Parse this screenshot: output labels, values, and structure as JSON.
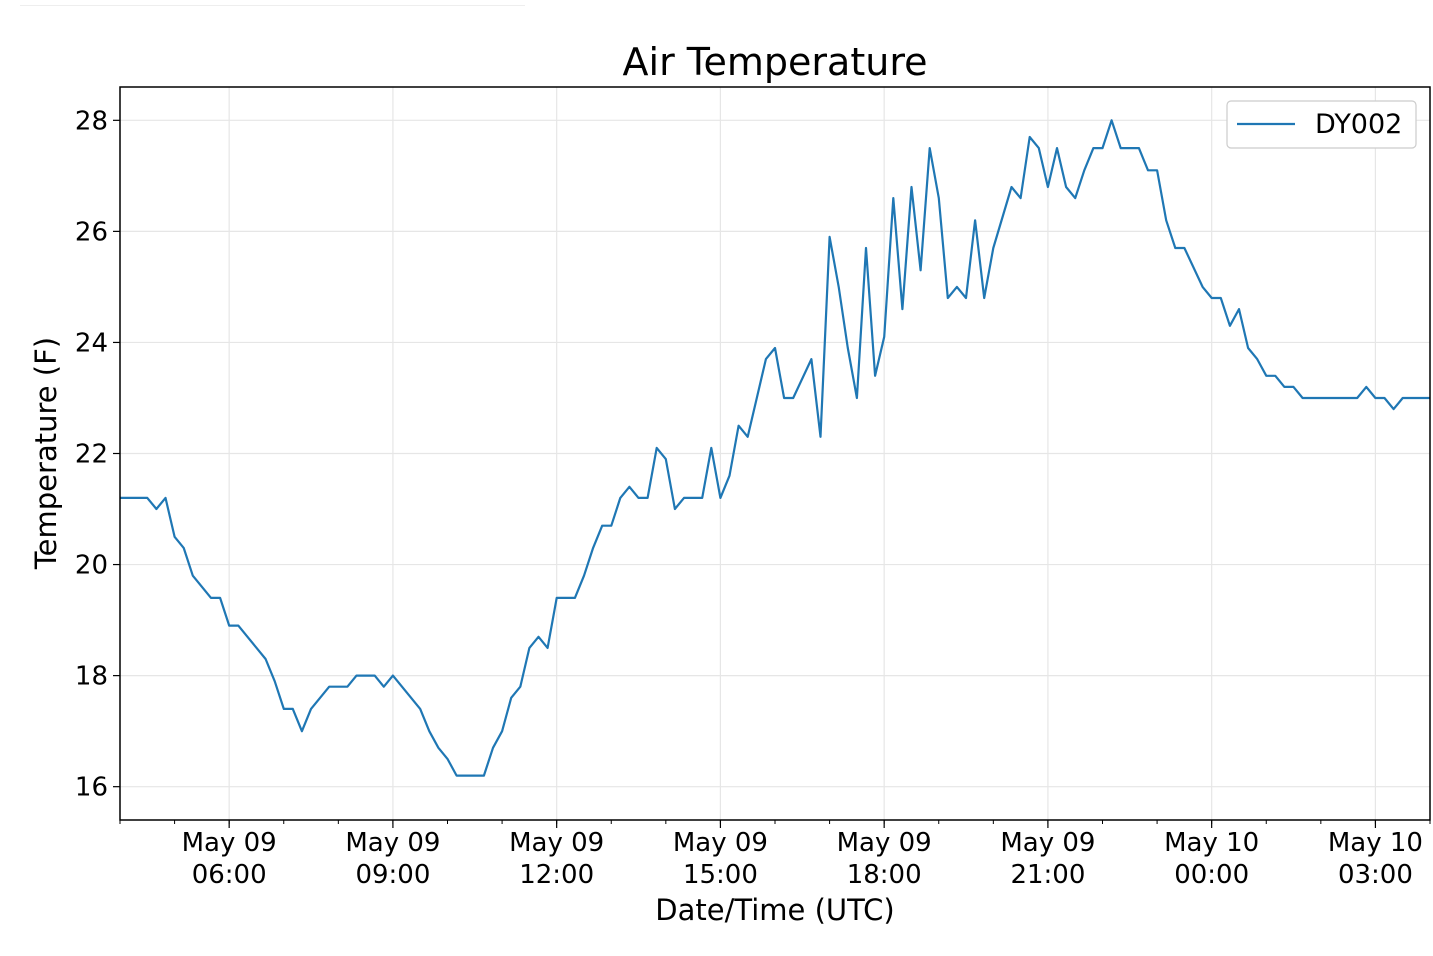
{
  "chart_data": {
    "type": "line",
    "title": "Air Temperature",
    "xlabel": "Date/Time (UTC)",
    "ylabel": "Temperature (F)",
    "x_range": [
      "2018-05-09T04:00",
      "2018-05-10T04:00"
    ],
    "ylim": [
      15.4,
      28.6
    ],
    "yticks": [
      16,
      18,
      20,
      22,
      24,
      26,
      28
    ],
    "xticks": [
      {
        "line1": "May 09",
        "line2": "06:00",
        "time": "2018-05-09T06:00"
      },
      {
        "line1": "May 09",
        "line2": "09:00",
        "time": "2018-05-09T09:00"
      },
      {
        "line1": "May 09",
        "line2": "12:00",
        "time": "2018-05-09T12:00"
      },
      {
        "line1": "May 09",
        "line2": "15:00",
        "time": "2018-05-09T15:00"
      },
      {
        "line1": "May 09",
        "line2": "18:00",
        "time": "2018-05-09T18:00"
      },
      {
        "line1": "May 09",
        "line2": "21:00",
        "time": "2018-05-09T21:00"
      },
      {
        "line1": "May 10",
        "line2": "00:00",
        "time": "2018-05-10T00:00"
      },
      {
        "line1": "May 10",
        "line2": "03:00",
        "time": "2018-05-10T03:00"
      }
    ],
    "grid": true,
    "legend_position": "top-right",
    "series": [
      {
        "name": "DY002",
        "color": "#1f77b4",
        "points": [
          [
            "2018-05-09T04:00",
            21.2
          ],
          [
            "2018-05-09T04:30",
            21.2
          ],
          [
            "2018-05-09T04:40",
            21.0
          ],
          [
            "2018-05-09T04:50",
            21.2
          ],
          [
            "2018-05-09T05:00",
            20.5
          ],
          [
            "2018-05-09T05:10",
            20.3
          ],
          [
            "2018-05-09T05:20",
            19.8
          ],
          [
            "2018-05-09T05:40",
            19.4
          ],
          [
            "2018-05-09T05:50",
            19.4
          ],
          [
            "2018-05-09T06:00",
            18.9
          ],
          [
            "2018-05-09T06:10",
            18.9
          ],
          [
            "2018-05-09T06:40",
            18.3
          ],
          [
            "2018-05-09T06:50",
            17.9
          ],
          [
            "2018-05-09T07:00",
            17.4
          ],
          [
            "2018-05-09T07:10",
            17.4
          ],
          [
            "2018-05-09T07:20",
            17.0
          ],
          [
            "2018-05-09T07:30",
            17.4
          ],
          [
            "2018-05-09T07:50",
            17.8
          ],
          [
            "2018-05-09T08:10",
            17.8
          ],
          [
            "2018-05-09T08:20",
            18.0
          ],
          [
            "2018-05-09T08:40",
            18.0
          ],
          [
            "2018-05-09T08:50",
            17.8
          ],
          [
            "2018-05-09T09:00",
            18.0
          ],
          [
            "2018-05-09T09:30",
            17.4
          ],
          [
            "2018-05-09T09:40",
            17.0
          ],
          [
            "2018-05-09T09:50",
            16.7
          ],
          [
            "2018-05-09T10:00",
            16.5
          ],
          [
            "2018-05-09T10:10",
            16.2
          ],
          [
            "2018-05-09T10:40",
            16.2
          ],
          [
            "2018-05-09T10:50",
            16.7
          ],
          [
            "2018-05-09T11:00",
            17.0
          ],
          [
            "2018-05-09T11:10",
            17.6
          ],
          [
            "2018-05-09T11:20",
            17.8
          ],
          [
            "2018-05-09T11:30",
            18.5
          ],
          [
            "2018-05-09T11:40",
            18.7
          ],
          [
            "2018-05-09T11:50",
            18.5
          ],
          [
            "2018-05-09T12:00",
            19.4
          ],
          [
            "2018-05-09T12:20",
            19.4
          ],
          [
            "2018-05-09T12:30",
            19.8
          ],
          [
            "2018-05-09T12:40",
            20.3
          ],
          [
            "2018-05-09T12:50",
            20.7
          ],
          [
            "2018-05-09T13:00",
            20.7
          ],
          [
            "2018-05-09T13:10",
            21.2
          ],
          [
            "2018-05-09T13:20",
            21.4
          ],
          [
            "2018-05-09T13:30",
            21.2
          ],
          [
            "2018-05-09T13:40",
            21.2
          ],
          [
            "2018-05-09T13:50",
            22.1
          ],
          [
            "2018-05-09T14:00",
            21.9
          ],
          [
            "2018-05-09T14:10",
            21.0
          ],
          [
            "2018-05-09T14:20",
            21.2
          ],
          [
            "2018-05-09T14:40",
            21.2
          ],
          [
            "2018-05-09T14:50",
            22.1
          ],
          [
            "2018-05-09T15:00",
            21.2
          ],
          [
            "2018-05-09T15:10",
            21.6
          ],
          [
            "2018-05-09T15:20",
            22.5
          ],
          [
            "2018-05-09T15:30",
            22.3
          ],
          [
            "2018-05-09T15:40",
            23.0
          ],
          [
            "2018-05-09T15:50",
            23.7
          ],
          [
            "2018-05-09T16:00",
            23.9
          ],
          [
            "2018-05-09T16:10",
            23.0
          ],
          [
            "2018-05-09T16:20",
            23.0
          ],
          [
            "2018-05-09T16:40",
            23.7
          ],
          [
            "2018-05-09T16:50",
            22.3
          ],
          [
            "2018-05-09T17:00",
            25.9
          ],
          [
            "2018-05-09T17:10",
            25.0
          ],
          [
            "2018-05-09T17:20",
            23.9
          ],
          [
            "2018-05-09T17:30",
            23.0
          ],
          [
            "2018-05-09T17:40",
            25.7
          ],
          [
            "2018-05-09T17:50",
            23.4
          ],
          [
            "2018-05-09T18:00",
            24.1
          ],
          [
            "2018-05-09T18:10",
            26.6
          ],
          [
            "2018-05-09T18:20",
            24.6
          ],
          [
            "2018-05-09T18:30",
            26.8
          ],
          [
            "2018-05-09T18:40",
            25.3
          ],
          [
            "2018-05-09T18:50",
            27.5
          ],
          [
            "2018-05-09T19:00",
            26.6
          ],
          [
            "2018-05-09T19:10",
            24.8
          ],
          [
            "2018-05-09T19:20",
            25.0
          ],
          [
            "2018-05-09T19:30",
            24.8
          ],
          [
            "2018-05-09T19:40",
            26.2
          ],
          [
            "2018-05-09T19:50",
            24.8
          ],
          [
            "2018-05-09T20:00",
            25.7
          ],
          [
            "2018-05-09T20:20",
            26.8
          ],
          [
            "2018-05-09T20:30",
            26.6
          ],
          [
            "2018-05-09T20:40",
            27.7
          ],
          [
            "2018-05-09T20:50",
            27.5
          ],
          [
            "2018-05-09T21:00",
            26.8
          ],
          [
            "2018-05-09T21:10",
            27.5
          ],
          [
            "2018-05-09T21:20",
            26.8
          ],
          [
            "2018-05-09T21:30",
            26.6
          ],
          [
            "2018-05-09T21:40",
            27.1
          ],
          [
            "2018-05-09T21:50",
            27.5
          ],
          [
            "2018-05-09T22:00",
            27.5
          ],
          [
            "2018-05-09T22:10",
            28.0
          ],
          [
            "2018-05-09T22:20",
            27.5
          ],
          [
            "2018-05-09T22:40",
            27.5
          ],
          [
            "2018-05-09T22:50",
            27.1
          ],
          [
            "2018-05-09T23:00",
            27.1
          ],
          [
            "2018-05-09T23:10",
            26.2
          ],
          [
            "2018-05-09T23:20",
            25.7
          ],
          [
            "2018-05-09T23:30",
            25.7
          ],
          [
            "2018-05-09T23:50",
            25.0
          ],
          [
            "2018-05-10T00:00",
            24.8
          ],
          [
            "2018-05-10T00:10",
            24.8
          ],
          [
            "2018-05-10T00:20",
            24.3
          ],
          [
            "2018-05-10T00:30",
            24.6
          ],
          [
            "2018-05-10T00:40",
            23.9
          ],
          [
            "2018-05-10T00:50",
            23.7
          ],
          [
            "2018-05-10T01:00",
            23.4
          ],
          [
            "2018-05-10T01:10",
            23.4
          ],
          [
            "2018-05-10T01:20",
            23.2
          ],
          [
            "2018-05-10T01:30",
            23.2
          ],
          [
            "2018-05-10T01:40",
            23.0
          ],
          [
            "2018-05-10T02:40",
            23.0
          ],
          [
            "2018-05-10T02:50",
            23.2
          ],
          [
            "2018-05-10T03:00",
            23.0
          ],
          [
            "2018-05-10T03:10",
            23.0
          ],
          [
            "2018-05-10T03:20",
            22.8
          ],
          [
            "2018-05-10T03:30",
            23.0
          ],
          [
            "2018-05-10T04:00",
            23.0
          ]
        ]
      }
    ]
  }
}
